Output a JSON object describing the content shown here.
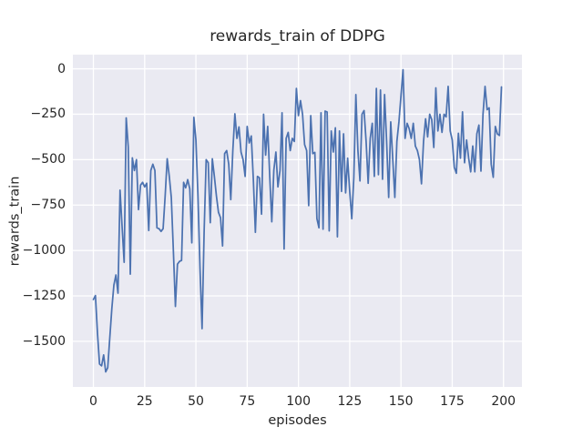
{
  "chart_data": {
    "type": "line",
    "title": "rewards_train of DDPG",
    "xlabel": "episodes",
    "ylabel": "rewards_train",
    "grid": true,
    "legend": "none",
    "plot_bg_color": "#EAEAF2",
    "grid_color": "#FFFFFF",
    "line_color": "#4C72B0",
    "text_color": "#262626",
    "xlim": [
      -10,
      209
    ],
    "ylim": [
      -1751,
      78
    ],
    "x_ticks": [
      0,
      25,
      50,
      75,
      100,
      125,
      150,
      175,
      200
    ],
    "x_tick_labels": [
      "0",
      "25",
      "50",
      "75",
      "100",
      "125",
      "150",
      "175",
      "200"
    ],
    "y_ticks": [
      0,
      -250,
      -500,
      -750,
      -1000,
      -1250,
      -1500
    ],
    "y_tick_labels": [
      "0",
      "−250",
      "−500",
      "−750",
      "−1000",
      "−1250",
      "−1500"
    ],
    "x_is_index": true,
    "series": [
      {
        "name": "rewards_train",
        "values": [
          -1270,
          -1248,
          -1455,
          -1625,
          -1635,
          -1575,
          -1668,
          -1645,
          -1480,
          -1320,
          -1190,
          -1135,
          -1235,
          -668,
          -870,
          -1065,
          -270,
          -430,
          -1130,
          -490,
          -560,
          -500,
          -775,
          -640,
          -625,
          -650,
          -630,
          -890,
          -560,
          -525,
          -560,
          -875,
          -880,
          -895,
          -880,
          -700,
          -495,
          -590,
          -708,
          -1000,
          -1308,
          -1075,
          -1060,
          -1055,
          -625,
          -655,
          -610,
          -660,
          -958,
          -267,
          -392,
          -700,
          -1100,
          -1430,
          -900,
          -500,
          -517,
          -847,
          -495,
          -592,
          -700,
          -790,
          -820,
          -975,
          -467,
          -450,
          -525,
          -720,
          -450,
          -248,
          -383,
          -320,
          -458,
          -500,
          -592,
          -317,
          -408,
          -370,
          -608,
          -900,
          -592,
          -600,
          -800,
          -250,
          -475,
          -317,
          -592,
          -842,
          -558,
          -458,
          -650,
          -560,
          -242,
          -992,
          -383,
          -350,
          -450,
          -383,
          -400,
          -108,
          -258,
          -175,
          -250,
          -417,
          -450,
          -753,
          -258,
          -467,
          -460,
          -825,
          -875,
          -242,
          -883,
          -233,
          -238,
          -892,
          -342,
          -458,
          -325,
          -925,
          -342,
          -675,
          -358,
          -683,
          -492,
          -675,
          -825,
          -600,
          -142,
          -450,
          -617,
          -250,
          -230,
          -400,
          -630,
          -383,
          -300,
          -592,
          -108,
          -583,
          -117,
          -608,
          -142,
          -400,
          -708,
          -292,
          -500,
          -708,
          -400,
          -292,
          -150,
          -5,
          -383,
          -300,
          -330,
          -383,
          -300,
          -425,
          -450,
          -500,
          -633,
          -400,
          -275,
          -375,
          -250,
          -280,
          -433,
          -105,
          -342,
          -250,
          -350,
          -250,
          -265,
          -97,
          -342,
          -392,
          -542,
          -575,
          -355,
          -492,
          -237,
          -517,
          -392,
          -492,
          -567,
          -425,
          -567,
          -358,
          -310,
          -563,
          -250,
          -97,
          -225,
          -215,
          -525,
          -597,
          -317,
          -358,
          -367,
          -100
        ]
      }
    ]
  }
}
